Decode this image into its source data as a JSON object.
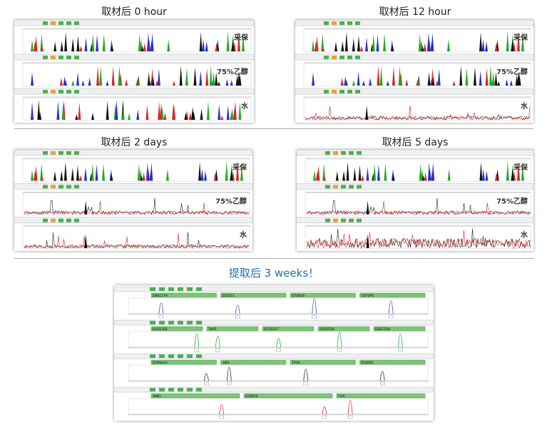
{
  "panels": [
    {
      "title": "取材后 0 hour",
      "lanes": [
        "采保",
        "75%乙醇",
        "水"
      ]
    },
    {
      "title": "取材后 12 hour",
      "lanes": [
        "采保",
        "75%乙醇",
        "水"
      ]
    },
    {
      "title": "取材后 2 days",
      "lanes": [
        "采保",
        "75%乙醇",
        "水"
      ]
    },
    {
      "title": "取材后 5 days",
      "lanes": [
        "采保",
        "75%乙醇",
        "水"
      ]
    }
  ],
  "bottom": {
    "title": "提取后 3 weeks！",
    "lanes": [
      {
        "markers": [
          "D8S1179",
          "D21S11",
          "D7S820",
          "CSF1PO"
        ]
      },
      {
        "markers": [
          "D3S1358",
          "TH01",
          "D13S317",
          "D16S539",
          "D2S1338"
        ]
      },
      {
        "markers": [
          "D19S433",
          "vWA",
          "TPOX",
          "D18S51"
        ]
      },
      {
        "markers": [
          "AMEL",
          "D5S818",
          "FGA"
        ]
      }
    ]
  }
}
